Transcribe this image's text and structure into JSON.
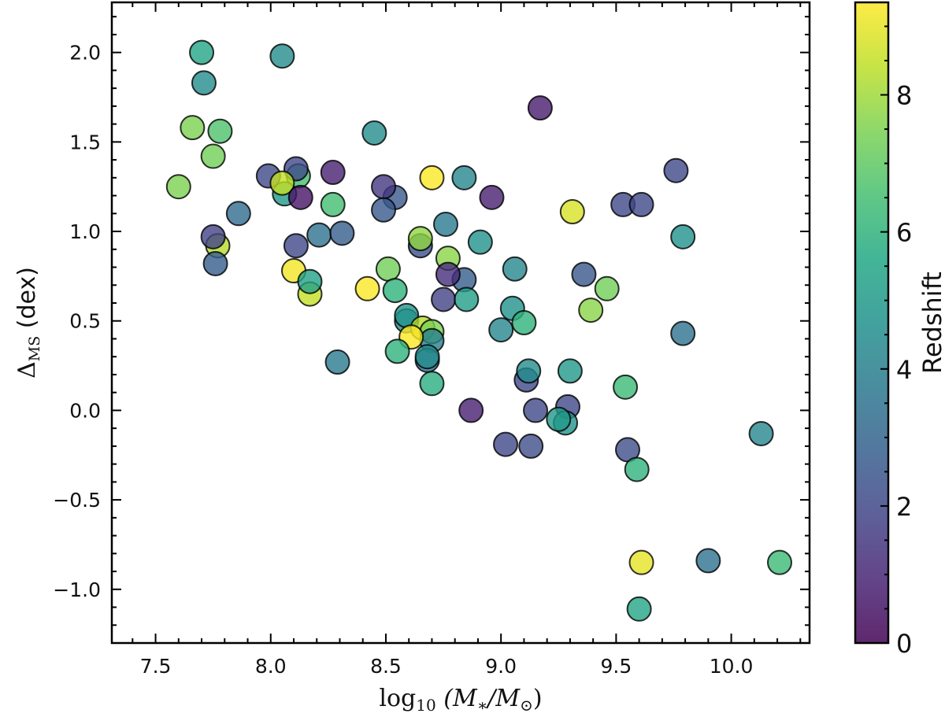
{
  "chart_data": {
    "type": "scatter",
    "title": "",
    "xlabel": {
      "main": "log",
      "sub": "10",
      "rest": " (M",
      "sub2": "∗",
      "slash": "/M",
      "sub3": "⊙",
      "close": ")"
    },
    "ylabel": {
      "symbol": "Δ",
      "sub": "MS",
      "rest": " (dex)"
    },
    "xlim": [
      7.31,
      10.34
    ],
    "ylim": [
      -1.3,
      2.28
    ],
    "xticks": [
      "7.5",
      "8.0",
      "8.5",
      "9.0",
      "9.5",
      "10.0"
    ],
    "yticks": [
      "2.0",
      "1.5",
      "1.0",
      "0.5",
      "0.0",
      "−0.5",
      "−1.0"
    ],
    "grid": false,
    "marker_edge_color": "#000000",
    "colormap": "viridis",
    "colorbar": {
      "label": "Redshift",
      "range": [
        0,
        9.35
      ],
      "ticks": [
        "0",
        "2",
        "4",
        "6",
        "8"
      ]
    },
    "points": [
      {
        "x": 7.7,
        "y": 2.0,
        "z": 5.5
      },
      {
        "x": 7.71,
        "y": 1.83,
        "z": 4.5
      },
      {
        "x": 8.05,
        "y": 1.98,
        "z": 4.5
      },
      {
        "x": 7.66,
        "y": 1.58,
        "z": 7.5
      },
      {
        "x": 7.78,
        "y": 1.56,
        "z": 6.7
      },
      {
        "x": 7.75,
        "y": 1.42,
        "z": 7.3
      },
      {
        "x": 7.6,
        "y": 1.25,
        "z": 7.5
      },
      {
        "x": 7.99,
        "y": 1.31,
        "z": 2.0
      },
      {
        "x": 8.12,
        "y": 1.31,
        "z": 6.5
      },
      {
        "x": 8.11,
        "y": 1.35,
        "z": 2.0
      },
      {
        "x": 8.06,
        "y": 1.21,
        "z": 5.0
      },
      {
        "x": 8.05,
        "y": 1.27,
        "z": 8.5
      },
      {
        "x": 8.13,
        "y": 1.19,
        "z": 0.5
      },
      {
        "x": 8.27,
        "y": 1.33,
        "z": 0.8
      },
      {
        "x": 8.27,
        "y": 1.15,
        "z": 6.5
      },
      {
        "x": 7.86,
        "y": 1.1,
        "z": 3.3
      },
      {
        "x": 8.21,
        "y": 0.98,
        "z": 3.5
      },
      {
        "x": 8.31,
        "y": 0.99,
        "z": 2.7
      },
      {
        "x": 7.77,
        "y": 0.92,
        "z": 8.3
      },
      {
        "x": 7.75,
        "y": 0.97,
        "z": 1.8
      },
      {
        "x": 7.76,
        "y": 0.82,
        "z": 2.7
      },
      {
        "x": 8.11,
        "y": 0.92,
        "z": 2.0
      },
      {
        "x": 8.1,
        "y": 0.78,
        "z": 9.2
      },
      {
        "x": 8.17,
        "y": 0.65,
        "z": 8.5
      },
      {
        "x": 8.17,
        "y": 0.72,
        "z": 5.3
      },
      {
        "x": 8.29,
        "y": 0.27,
        "z": 3.8
      },
      {
        "x": 8.45,
        "y": 1.55,
        "z": 4.5
      },
      {
        "x": 9.17,
        "y": 1.69,
        "z": 0.7
      },
      {
        "x": 8.54,
        "y": 1.19,
        "z": 2.6
      },
      {
        "x": 8.49,
        "y": 1.25,
        "z": 1.5
      },
      {
        "x": 8.49,
        "y": 1.12,
        "z": 2.6
      },
      {
        "x": 8.7,
        "y": 1.3,
        "z": 9.3
      },
      {
        "x": 8.84,
        "y": 1.3,
        "z": 4.3
      },
      {
        "x": 8.96,
        "y": 1.19,
        "z": 0.8
      },
      {
        "x": 9.31,
        "y": 1.11,
        "z": 8.8
      },
      {
        "x": 8.76,
        "y": 1.04,
        "z": 3.8
      },
      {
        "x": 8.65,
        "y": 0.92,
        "z": 2.3
      },
      {
        "x": 8.65,
        "y": 0.96,
        "z": 7.8
      },
      {
        "x": 8.91,
        "y": 0.94,
        "z": 4.7
      },
      {
        "x": 9.06,
        "y": 0.79,
        "z": 4.3
      },
      {
        "x": 8.51,
        "y": 0.79,
        "z": 7.3
      },
      {
        "x": 8.77,
        "y": 0.85,
        "z": 7.7
      },
      {
        "x": 8.84,
        "y": 0.73,
        "z": 2.7
      },
      {
        "x": 8.77,
        "y": 0.76,
        "z": 1.2
      },
      {
        "x": 8.42,
        "y": 0.68,
        "z": 9.3
      },
      {
        "x": 8.54,
        "y": 0.67,
        "z": 6.0
      },
      {
        "x": 8.75,
        "y": 0.62,
        "z": 1.8
      },
      {
        "x": 8.85,
        "y": 0.62,
        "z": 5.2
      },
      {
        "x": 9.05,
        "y": 0.57,
        "z": 4.7
      },
      {
        "x": 9.0,
        "y": 0.45,
        "z": 4.3
      },
      {
        "x": 9.1,
        "y": 0.49,
        "z": 6.0
      },
      {
        "x": 8.59,
        "y": 0.5,
        "z": 4.5
      },
      {
        "x": 8.59,
        "y": 0.53,
        "z": 4.8
      },
      {
        "x": 8.66,
        "y": 0.46,
        "z": 8.3
      },
      {
        "x": 8.7,
        "y": 0.44,
        "z": 7.5
      },
      {
        "x": 8.7,
        "y": 0.39,
        "z": 4.0
      },
      {
        "x": 8.61,
        "y": 0.41,
        "z": 9.3
      },
      {
        "x": 8.55,
        "y": 0.33,
        "z": 6.0
      },
      {
        "x": 8.68,
        "y": 0.28,
        "z": 3.5
      },
      {
        "x": 8.68,
        "y": 0.3,
        "z": 4.5
      },
      {
        "x": 8.7,
        "y": 0.15,
        "z": 5.8
      },
      {
        "x": 9.11,
        "y": 0.17,
        "z": 2.0
      },
      {
        "x": 9.12,
        "y": 0.22,
        "z": 4.5
      },
      {
        "x": 8.87,
        "y": 0.0,
        "z": 0.8
      },
      {
        "x": 9.15,
        "y": 0.0,
        "z": 2.0
      },
      {
        "x": 9.02,
        "y": -0.19,
        "z": 2.0
      },
      {
        "x": 9.13,
        "y": -0.2,
        "z": 2.2
      },
      {
        "x": 9.76,
        "y": 1.34,
        "z": 2.0
      },
      {
        "x": 9.53,
        "y": 1.15,
        "z": 2.0
      },
      {
        "x": 9.61,
        "y": 1.15,
        "z": 2.0
      },
      {
        "x": 9.79,
        "y": 0.97,
        "z": 4.7
      },
      {
        "x": 9.36,
        "y": 0.76,
        "z": 2.5
      },
      {
        "x": 9.46,
        "y": 0.68,
        "z": 7.3
      },
      {
        "x": 9.39,
        "y": 0.56,
        "z": 7.7
      },
      {
        "x": 9.79,
        "y": 0.43,
        "z": 3.5
      },
      {
        "x": 9.3,
        "y": 0.22,
        "z": 5.0
      },
      {
        "x": 9.54,
        "y": 0.13,
        "z": 6.3
      },
      {
        "x": 9.29,
        "y": 0.02,
        "z": 2.0
      },
      {
        "x": 9.28,
        "y": -0.07,
        "z": 4.8
      },
      {
        "x": 9.25,
        "y": -0.05,
        "z": 5.0
      },
      {
        "x": 10.13,
        "y": -0.13,
        "z": 4.3
      },
      {
        "x": 9.55,
        "y": -0.22,
        "z": 2.2
      },
      {
        "x": 9.59,
        "y": -0.33,
        "z": 6.0
      },
      {
        "x": 9.61,
        "y": -0.85,
        "z": 9.0
      },
      {
        "x": 9.9,
        "y": -0.84,
        "z": 3.5
      },
      {
        "x": 10.21,
        "y": -0.85,
        "z": 6.3
      },
      {
        "x": 9.6,
        "y": -1.11,
        "z": 5.5
      }
    ]
  }
}
